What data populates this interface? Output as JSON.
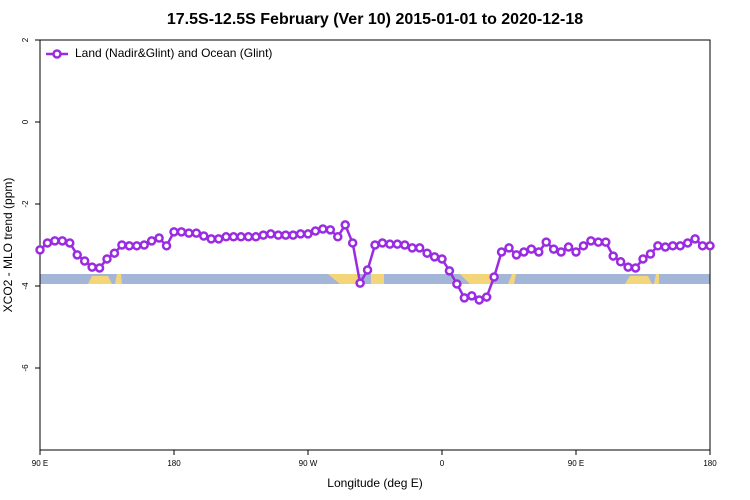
{
  "chart_data": {
    "type": "line",
    "title": "17.5S-12.5S February (Ver 10)   2015-01-01 to 2020-12-18",
    "x_label": "Longitude (deg E)",
    "y_label": "XCO2 - MLO trend (ppm)",
    "xlim": [
      90,
      540
    ],
    "xticks": [
      {
        "value": 90,
        "label": "90 E"
      },
      {
        "value": 180,
        "label": "180"
      },
      {
        "value": 270,
        "label": "90 W"
      },
      {
        "value": 360,
        "label": "0"
      },
      {
        "value": 450,
        "label": "90 E"
      },
      {
        "value": 540,
        "label": "180"
      }
    ],
    "ylim": [
      -8,
      2
    ],
    "yticks": [
      2,
      0,
      -2,
      -4,
      -6
    ],
    "legend": "top-left",
    "x": [
      90,
      95,
      100,
      105,
      110,
      115,
      120,
      125,
      130,
      135,
      140,
      145,
      150,
      155,
      160,
      165,
      170,
      175,
      180,
      185,
      190,
      195,
      200,
      205,
      210,
      215,
      220,
      225,
      230,
      235,
      240,
      245,
      250,
      255,
      260,
      265,
      270,
      275,
      280,
      285,
      290,
      295,
      300,
      305,
      310,
      315,
      320,
      325,
      330,
      335,
      340,
      345,
      350,
      355,
      360,
      365,
      370,
      375,
      380,
      385,
      390,
      395,
      400,
      405,
      410,
      415,
      420,
      425,
      430,
      435,
      440,
      445,
      450,
      455,
      460,
      465,
      470,
      475,
      480,
      485,
      490,
      495,
      500,
      505,
      510,
      515,
      520,
      525,
      530,
      535,
      540
    ],
    "series": [
      {
        "name": "Land (Nadir&Glint) and Ocean (Glint)",
        "color": "#9a2be2",
        "values": [
          -3.12,
          -2.95,
          -2.9,
          -2.9,
          -2.95,
          -3.24,
          -3.39,
          -3.54,
          -3.56,
          -3.34,
          -3.2,
          -3.0,
          -3.02,
          -3.02,
          -3.0,
          -2.9,
          -2.83,
          -3.02,
          -2.68,
          -2.68,
          -2.71,
          -2.71,
          -2.78,
          -2.85,
          -2.85,
          -2.8,
          -2.8,
          -2.8,
          -2.8,
          -2.8,
          -2.76,
          -2.73,
          -2.76,
          -2.76,
          -2.76,
          -2.73,
          -2.73,
          -2.66,
          -2.61,
          -2.63,
          -2.8,
          -2.51,
          -2.95,
          -3.93,
          -3.61,
          -3.0,
          -2.95,
          -2.98,
          -2.98,
          -3.0,
          -3.07,
          -3.07,
          -3.2,
          -3.29,
          -3.34,
          -3.63,
          -3.95,
          -4.29,
          -4.24,
          -4.34,
          -4.27,
          -3.78,
          -3.17,
          -3.07,
          -3.24,
          -3.17,
          -3.1,
          -3.17,
          -2.93,
          -3.1,
          -3.17,
          -3.05,
          -3.17,
          -3.02,
          -2.9,
          -2.93,
          -2.93,
          -3.27,
          -3.41,
          -3.54,
          -3.56,
          -3.34,
          -3.22,
          -3.02,
          -3.05,
          -3.02,
          -3.02,
          -2.95,
          -2.85,
          -3.02,
          -3.02
        ]
      }
    ]
  }
}
